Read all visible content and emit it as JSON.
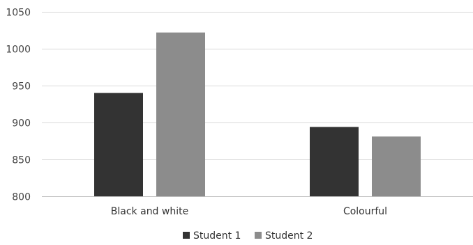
{
  "chart_data": {
    "type": "bar",
    "categories": [
      "Black and white",
      "Colourful"
    ],
    "series": [
      {
        "name": "Student 1",
        "values": [
          940,
          894
        ],
        "color": "#333333"
      },
      {
        "name": "Student 2",
        "values": [
          1022,
          881
        ],
        "color": "#8c8c8c"
      }
    ],
    "ylim": [
      800,
      1050
    ],
    "yticks": [
      800,
      850,
      900,
      950,
      1000,
      1050
    ],
    "grid": true,
    "legend_position": "bottom"
  }
}
